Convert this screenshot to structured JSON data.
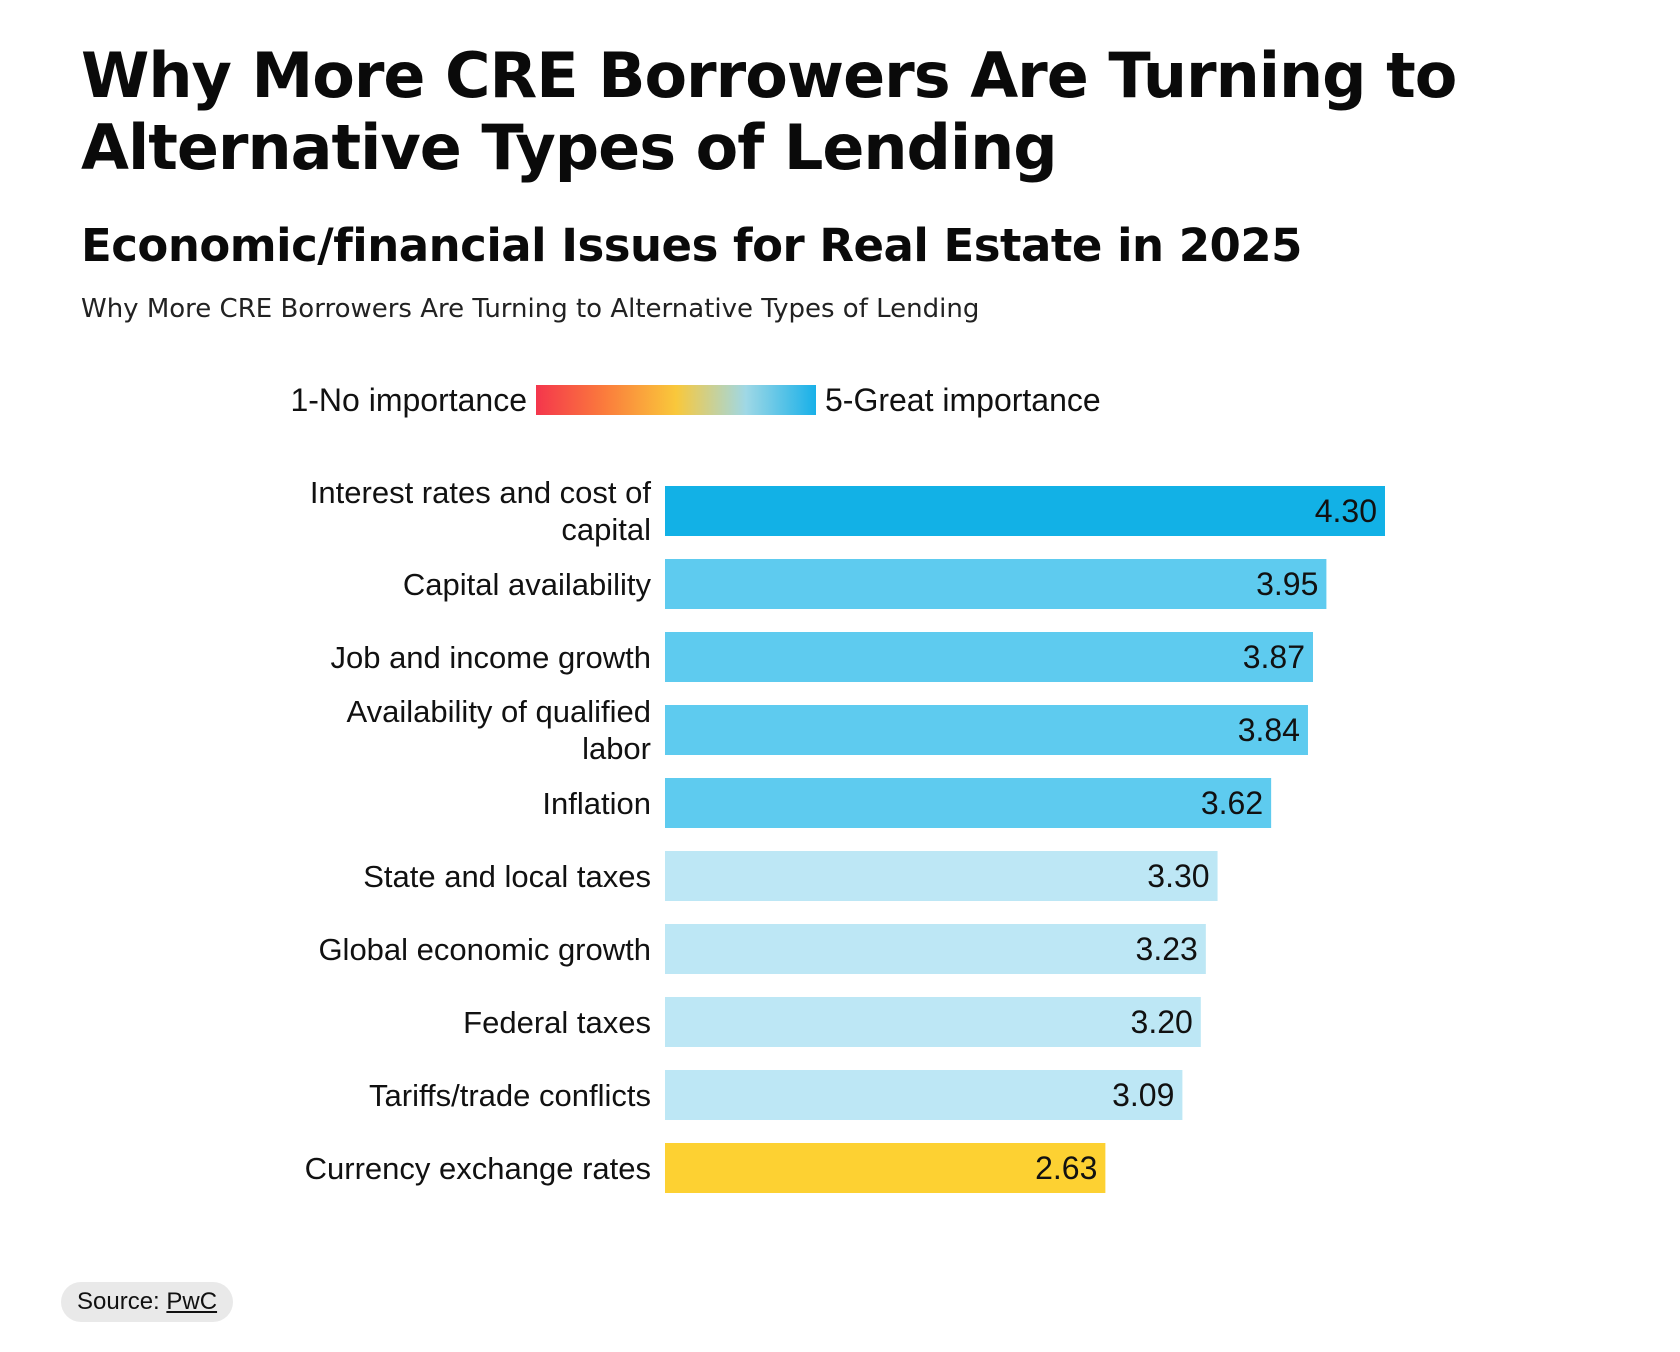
{
  "title": "Why More CRE Borrowers Are Turning to Alternative Types of Lending",
  "subtitle": "Economic/financial Issues for Real Estate in 2025",
  "caption": "Why More CRE Borrowers Are Turning to Alternative Types of Lending",
  "legend": {
    "low_label": "1-No importance",
    "high_label": "5-Great importance",
    "gradient_colors": [
      "#f4364c",
      "#fb7d3c",
      "#f9c83b",
      "#9fd8e6",
      "#18b0e8"
    ]
  },
  "source": {
    "prefix": "Source: ",
    "name": "PwC"
  },
  "chart_data": {
    "type": "bar",
    "orientation": "horizontal",
    "title": "Economic/financial Issues for Real Estate in 2025",
    "xlabel": "",
    "ylabel": "",
    "xlim": [
      0,
      4.3
    ],
    "grid": false,
    "categories": [
      [
        "Interest rates and cost of",
        "capital"
      ],
      [
        "Capital availability"
      ],
      [
        "Job and income growth"
      ],
      [
        "Availability of qualified",
        "labor"
      ],
      [
        "Inflation"
      ],
      [
        "State and local taxes"
      ],
      [
        "Global economic growth"
      ],
      [
        "Federal taxes"
      ],
      [
        "Tariffs/trade conflicts"
      ],
      [
        "Currency exchange rates"
      ]
    ],
    "values": [
      4.3,
      3.95,
      3.87,
      3.84,
      3.62,
      3.3,
      3.23,
      3.2,
      3.09,
      2.63
    ],
    "value_labels": [
      "4.30",
      "3.95",
      "3.87",
      "3.84",
      "3.62",
      "3.30",
      "3.23",
      "3.20",
      "3.09",
      "2.63"
    ],
    "colors": [
      "#12b1e6",
      "#5ecbef",
      "#5ecbef",
      "#5ecbef",
      "#5ecbef",
      "#bde7f5",
      "#bde7f5",
      "#bde7f5",
      "#bde7f5",
      "#fdd132"
    ]
  }
}
